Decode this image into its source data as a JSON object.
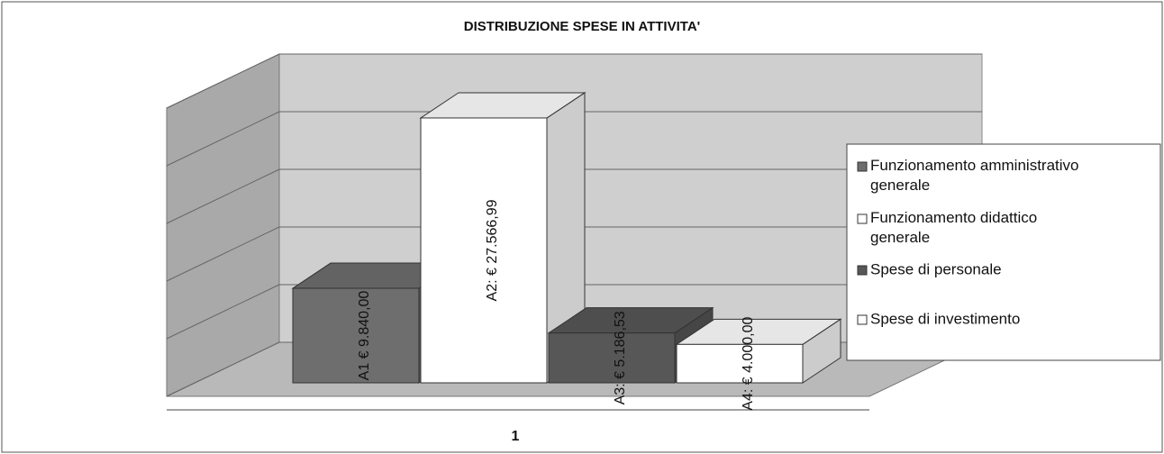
{
  "chart_data": {
    "type": "bar3d",
    "title": "DISTRIBUZIONE SPESE IN ATTIVITA'",
    "categories": [
      "1"
    ],
    "series": [
      {
        "name": "Funzionamento amministrativo generale",
        "color": "#6e6e6e",
        "values": [
          9840
        ],
        "value_labels": [
          "A1 € 9.840,00"
        ]
      },
      {
        "name": "Funzionamento didattico generale",
        "color": "#ffffff",
        "values": [
          27566.99
        ],
        "value_labels": [
          "A2: € 27.566,99"
        ]
      },
      {
        "name": "Spese di personale",
        "color": "#575757",
        "values": [
          5186.53
        ],
        "value_labels": [
          "A3: € 5.186,53"
        ]
      },
      {
        "name": "Spese di investimento",
        "color": "#ffffff",
        "values": [
          4000
        ],
        "value_labels": [
          "A4: € 4.000,00"
        ]
      }
    ],
    "ylim": [
      0,
      30000
    ],
    "yticks": [
      0,
      6000,
      12000,
      18000,
      24000,
      30000
    ],
    "grid": true,
    "legend": "right"
  }
}
